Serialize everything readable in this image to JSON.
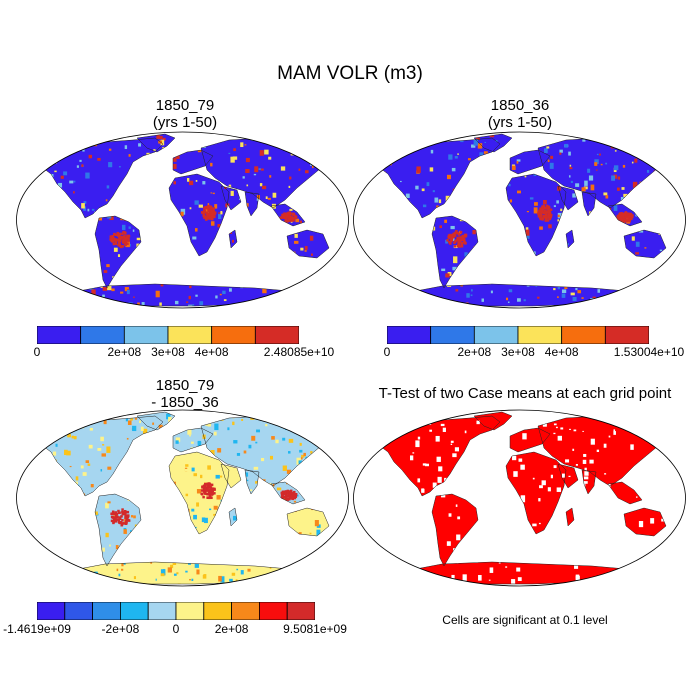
{
  "title": "MAM VOLR (m3)",
  "panels": [
    {
      "id": "p1",
      "title_lines": [
        "1850_79",
        "(yrs 1-50)"
      ],
      "style": "volr",
      "colorbar": {
        "colors": [
          "#3a1ef0",
          "#2f78e8",
          "#7cc3ea",
          "#fbe35a",
          "#f66e0e",
          "#d52c26"
        ],
        "labels": [
          {
            "text": "0",
            "boundary": 0
          },
          {
            "text": "2e+08",
            "boundary": 2
          },
          {
            "text": "3e+08",
            "boundary": 3
          },
          {
            "text": "4e+08",
            "boundary": 4
          },
          {
            "text": "2.48085e+10",
            "boundary": 6
          }
        ]
      }
    },
    {
      "id": "p2",
      "title_lines": [
        "1850_36",
        "(yrs 1-50)"
      ],
      "style": "volr",
      "colorbar": {
        "colors": [
          "#3a1ef0",
          "#2f78e8",
          "#7cc3ea",
          "#fbe35a",
          "#f66e0e",
          "#d52c26"
        ],
        "labels": [
          {
            "text": "0",
            "boundary": 0
          },
          {
            "text": "2e+08",
            "boundary": 2
          },
          {
            "text": "3e+08",
            "boundary": 3
          },
          {
            "text": "4e+08",
            "boundary": 4
          },
          {
            "text": "1.53004e+10",
            "boundary": 6
          }
        ]
      }
    },
    {
      "id": "p3",
      "title_lines": [
        "1850_79",
        "- 1850_36"
      ],
      "style": "diff",
      "colorbar": {
        "colors": [
          "#3a1ef0",
          "#2f57e8",
          "#2f8ee8",
          "#1fb6f0",
          "#a6d6f0",
          "#fdf38a",
          "#fbc31a",
          "#f7881a",
          "#f80d0d",
          "#d32a2a"
        ],
        "labels": [
          {
            "text": "-1.4619e+09",
            "boundary": 0
          },
          {
            "text": "-2e+08",
            "boundary": 3
          },
          {
            "text": "0",
            "boundary": 5
          },
          {
            "text": "2e+08",
            "boundary": 7
          },
          {
            "text": "9.5081e+09",
            "boundary": 10
          }
        ]
      }
    },
    {
      "id": "p4",
      "title_lines": [
        "T-Test of two Case means at each grid point"
      ],
      "style": "ttest",
      "note": "Cells are significant at 0.1 level"
    }
  ],
  "style_colors": {
    "volr": {
      "land": "#3a1ef0",
      "speckle": [
        "#2f78e8",
        "#7cc3ea",
        "#fbe35a",
        "#f66e0e",
        "#d52c26"
      ],
      "hot": "#d52c26"
    },
    "diff": {
      "land": "#a6d6f0",
      "speckle": [
        "#fdf38a",
        "#fbc31a",
        "#1fb6f0",
        "#f7881a"
      ],
      "hot": "#d32a2a",
      "desert": "#fdf38a"
    },
    "ttest": {
      "land": "#ff0000",
      "speckle": [
        "#ffffff"
      ],
      "hot": "#ff0000"
    }
  }
}
